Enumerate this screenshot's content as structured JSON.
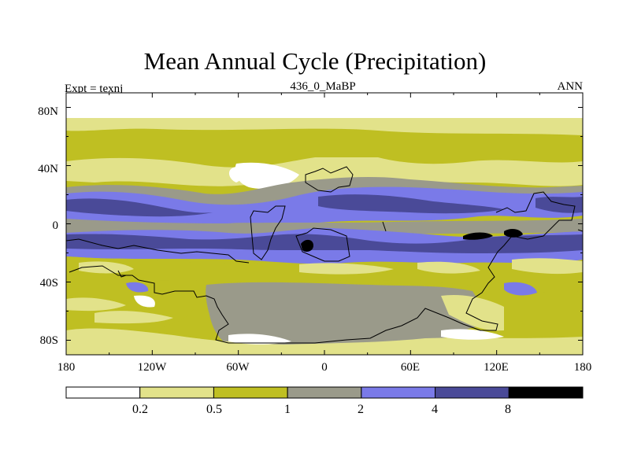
{
  "title": "Mean Annual Cycle (Precipitation)",
  "subtitle_left": "Expt = texnj",
  "subtitle_center": "436_0_MaBP",
  "subtitle_right": "ANN",
  "lat_ticks": [
    "80N",
    "40N",
    "0",
    "40S",
    "80S"
  ],
  "lon_ticks": [
    "180",
    "120W",
    "60W",
    "0",
    "60E",
    "120E",
    "180"
  ],
  "colorbar": {
    "levels": [
      "0.2",
      "0.5",
      "1",
      "2",
      "4",
      "8"
    ],
    "colors": [
      "#ffffff",
      "#e2e28a",
      "#bfbf22",
      "#9a9a8a",
      "#7a7ae8",
      "#4a4a98",
      "#000000"
    ]
  },
  "colors": {
    "white": "#ffffff",
    "pale": "#e2e28a",
    "olive": "#bfbf22",
    "gray": "#9a9a8a",
    "lightblue": "#7a7ae8",
    "darkblue": "#4a4a98",
    "black": "#000000"
  }
}
